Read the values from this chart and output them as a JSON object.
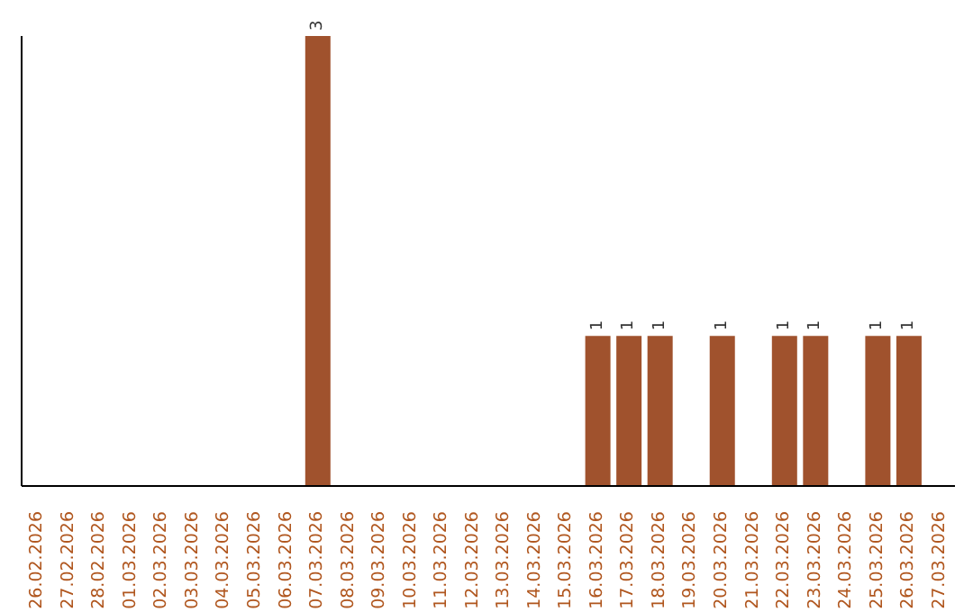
{
  "chart_data": {
    "type": "bar",
    "categories": [
      "26.02.2026",
      "27.02.2026",
      "28.02.2026",
      "01.03.2026",
      "02.03.2026",
      "03.03.2026",
      "04.03.2026",
      "05.03.2026",
      "06.03.2026",
      "07.03.2026",
      "08.03.2026",
      "09.03.2026",
      "10.03.2026",
      "11.03.2026",
      "12.03.2026",
      "13.03.2026",
      "14.03.2026",
      "15.03.2026",
      "16.03.2026",
      "17.03.2026",
      "18.03.2026",
      "19.03.2026",
      "20.03.2026",
      "21.03.2026",
      "22.03.2026",
      "23.03.2026",
      "24.03.2026",
      "25.03.2026",
      "26.03.2026",
      "27.03.2026"
    ],
    "values": [
      0,
      0,
      0,
      0,
      0,
      0,
      0,
      0,
      0,
      3,
      0,
      0,
      0,
      0,
      0,
      0,
      0,
      0,
      1,
      1,
      1,
      0,
      1,
      0,
      1,
      1,
      0,
      1,
      1,
      0
    ],
    "value_labels": [
      null,
      null,
      null,
      null,
      null,
      null,
      null,
      null,
      null,
      "3",
      null,
      null,
      null,
      null,
      null,
      null,
      null,
      null,
      "1",
      "1",
      "1",
      null,
      "1",
      null,
      "1",
      "1",
      null,
      "1",
      "1",
      null
    ],
    "color": "#a0522d",
    "tick_labels": "x"
  }
}
